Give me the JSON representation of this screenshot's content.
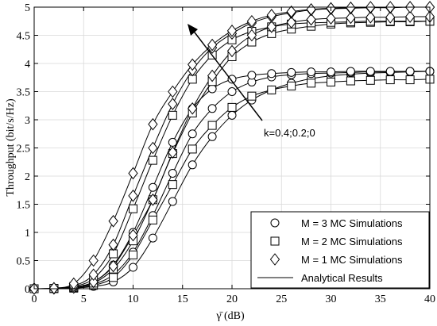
{
  "chart_data": {
    "type": "line",
    "xlabel": "γ̄ (dB)",
    "ylabel": "Throughput (bit/s/Hz)",
    "xlim": [
      0,
      40
    ],
    "ylim": [
      0,
      5
    ],
    "xticks": [
      0,
      5,
      10,
      15,
      20,
      25,
      30,
      35,
      40
    ],
    "yticks": [
      0,
      0.5,
      1,
      1.5,
      2,
      2.5,
      3,
      3.5,
      4,
      4.5,
      5
    ],
    "grid": true,
    "legend_position": "bottom-right",
    "legend": [
      {
        "label": "M = 3 MC Simulations",
        "marker": "circle"
      },
      {
        "label": "M = 2 MC Simulations",
        "marker": "square"
      },
      {
        "label": "M = 1 MC Simulations",
        "marker": "diamond"
      },
      {
        "label": "Analytical Results",
        "marker": "line"
      }
    ],
    "annotation": {
      "text": "k=0.4;0.2;0"
    },
    "x": [
      0,
      2,
      4,
      6,
      8,
      10,
      12,
      14,
      16,
      18,
      20,
      22,
      24,
      26,
      28,
      30,
      32,
      34,
      36,
      38,
      40
    ],
    "series": [
      {
        "marker": "circle",
        "k": 0.4,
        "values": [
          0,
          0.003,
          0.01,
          0.04,
          0.12,
          0.38,
          0.9,
          1.55,
          2.2,
          2.7,
          3.08,
          3.35,
          3.53,
          3.65,
          3.73,
          3.78,
          3.81,
          3.83,
          3.84,
          3.85,
          3.86
        ]
      },
      {
        "marker": "circle",
        "k": 0.2,
        "values": [
          0,
          0.003,
          0.02,
          0.08,
          0.25,
          0.65,
          1.3,
          2.05,
          2.75,
          3.2,
          3.5,
          3.67,
          3.76,
          3.8,
          3.82,
          3.83,
          3.84,
          3.85,
          3.85,
          3.86,
          3.86
        ]
      },
      {
        "marker": "circle",
        "k": 0.0,
        "values": [
          0,
          0.004,
          0.03,
          0.12,
          0.42,
          1.0,
          1.8,
          2.6,
          3.2,
          3.55,
          3.72,
          3.79,
          3.82,
          3.84,
          3.85,
          3.85,
          3.86,
          3.86,
          3.86,
          3.86,
          3.86
        ]
      },
      {
        "marker": "square",
        "k": 0.4,
        "values": [
          0,
          0.003,
          0.01,
          0.06,
          0.2,
          0.6,
          1.22,
          1.85,
          2.48,
          2.9,
          3.22,
          3.42,
          3.53,
          3.6,
          3.65,
          3.67,
          3.69,
          3.7,
          3.71,
          3.71,
          3.72
        ]
      },
      {
        "marker": "square",
        "k": 0.2,
        "values": [
          0,
          0.004,
          0.02,
          0.1,
          0.35,
          0.85,
          1.58,
          2.4,
          3.12,
          3.68,
          4.12,
          4.38,
          4.53,
          4.61,
          4.66,
          4.7,
          4.72,
          4.73,
          4.74,
          4.74,
          4.75
        ]
      },
      {
        "marker": "square",
        "k": 0.0,
        "values": [
          0,
          0.005,
          0.04,
          0.18,
          0.62,
          1.42,
          2.28,
          3.08,
          3.72,
          4.15,
          4.42,
          4.57,
          4.65,
          4.7,
          4.72,
          4.73,
          4.74,
          4.75,
          4.75,
          4.75,
          4.75
        ]
      },
      {
        "marker": "diamond",
        "k": 0.4,
        "values": [
          0,
          0.005,
          0.02,
          0.12,
          0.4,
          0.95,
          1.58,
          2.42,
          3.2,
          3.78,
          4.22,
          4.5,
          4.65,
          4.73,
          4.78,
          4.8,
          4.81,
          4.82,
          4.82,
          4.83,
          4.83
        ]
      },
      {
        "marker": "diamond",
        "k": 0.2,
        "values": [
          0,
          0.007,
          0.05,
          0.25,
          0.78,
          1.65,
          2.5,
          3.28,
          3.88,
          4.28,
          4.53,
          4.72,
          4.83,
          4.9,
          4.95,
          4.97,
          4.98,
          4.99,
          4.99,
          5.0,
          5.0
        ]
      },
      {
        "marker": "diamond",
        "k": 0.0,
        "values": [
          0,
          0.01,
          0.09,
          0.5,
          1.2,
          2.05,
          2.92,
          3.5,
          3.98,
          4.33,
          4.58,
          4.75,
          4.86,
          4.92,
          4.96,
          4.98,
          4.99,
          5.0,
          5.0,
          5.0,
          5.0
        ]
      }
    ]
  }
}
